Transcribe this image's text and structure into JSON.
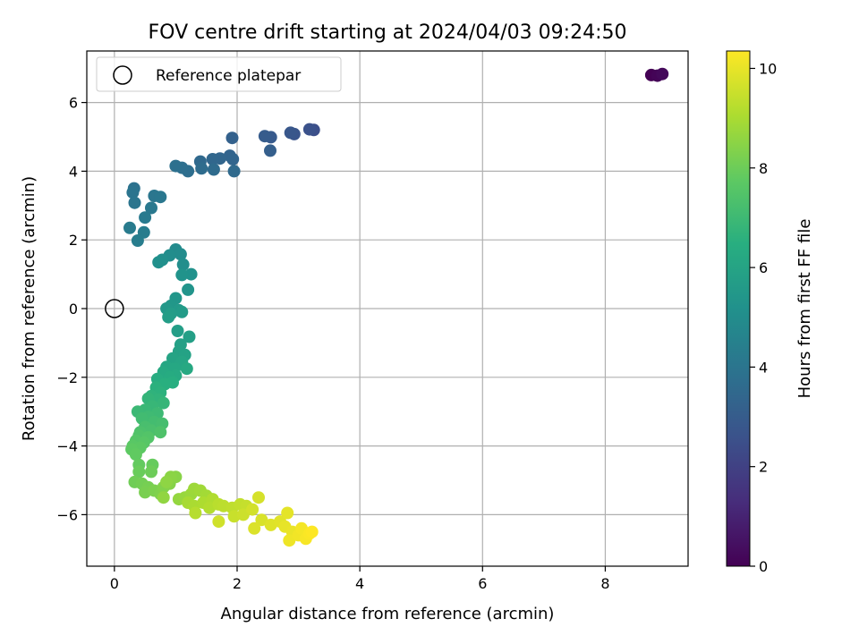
{
  "chart_data": {
    "type": "scatter",
    "title": "FOV centre drift starting at 2024/04/03 09:24:50",
    "xlabel": "Angular distance from reference (arcmin)",
    "ylabel": "Rotation from reference (arcmin)",
    "xlim": [
      -0.45,
      9.35
    ],
    "ylim": [
      -7.5,
      7.5
    ],
    "x_ticks": [
      0,
      2,
      4,
      6,
      8
    ],
    "y_ticks": [
      -6,
      -4,
      -2,
      0,
      2,
      4,
      6
    ],
    "x_tick_labels": [
      "0",
      "2",
      "4",
      "6",
      "8"
    ],
    "y_tick_labels": [
      "−6",
      "−4",
      "−2",
      "0",
      "2",
      "4",
      "6"
    ],
    "grid": true,
    "legend": {
      "placement": "top-left",
      "entries": [
        "Reference platepar"
      ]
    },
    "colormap": "viridis",
    "colorbar": {
      "label": "Hours from first FF file",
      "range": [
        0,
        10.35
      ],
      "ticks": [
        0,
        2,
        4,
        6,
        8,
        10
      ],
      "tick_labels": [
        "0",
        "2",
        "4",
        "6",
        "8",
        "10"
      ]
    },
    "reference_point": {
      "name": "Reference platepar",
      "x": 0,
      "y": 0
    },
    "series": [
      {
        "values": [
          {
            "x": 8.75,
            "y": 6.8,
            "t": 0.0
          },
          {
            "x": 8.85,
            "y": 6.78,
            "t": 0.1
          },
          {
            "x": 8.93,
            "y": 6.83,
            "t": 0.2
          },
          {
            "x": 3.25,
            "y": 5.2,
            "t": 2.5
          },
          {
            "x": 3.18,
            "y": 5.22,
            "t": 2.6
          },
          {
            "x": 2.93,
            "y": 5.08,
            "t": 2.7
          },
          {
            "x": 2.87,
            "y": 5.12,
            "t": 2.8
          },
          {
            "x": 2.55,
            "y": 4.99,
            "t": 2.9
          },
          {
            "x": 2.45,
            "y": 5.02,
            "t": 3.0
          },
          {
            "x": 2.54,
            "y": 4.6,
            "t": 3.1
          },
          {
            "x": 1.92,
            "y": 4.97,
            "t": 3.2
          },
          {
            "x": 1.88,
            "y": 4.45,
            "t": 3.3
          },
          {
            "x": 1.93,
            "y": 4.35,
            "t": 3.35
          },
          {
            "x": 1.72,
            "y": 4.37,
            "t": 3.4
          },
          {
            "x": 1.6,
            "y": 4.35,
            "t": 3.45
          },
          {
            "x": 1.4,
            "y": 4.28,
            "t": 3.5
          },
          {
            "x": 1.95,
            "y": 4.0,
            "t": 3.55
          },
          {
            "x": 1.62,
            "y": 4.05,
            "t": 3.6
          },
          {
            "x": 1.42,
            "y": 4.08,
            "t": 3.65
          },
          {
            "x": 1.2,
            "y": 4.0,
            "t": 3.7
          },
          {
            "x": 1.1,
            "y": 4.1,
            "t": 3.75
          },
          {
            "x": 1.0,
            "y": 4.15,
            "t": 3.8
          },
          {
            "x": 0.32,
            "y": 3.5,
            "t": 3.9
          },
          {
            "x": 0.3,
            "y": 3.38,
            "t": 3.95
          },
          {
            "x": 0.33,
            "y": 3.08,
            "t": 4.0
          },
          {
            "x": 0.65,
            "y": 3.28,
            "t": 4.05
          },
          {
            "x": 0.75,
            "y": 3.25,
            "t": 4.1
          },
          {
            "x": 0.6,
            "y": 2.93,
            "t": 4.15
          },
          {
            "x": 0.5,
            "y": 2.65,
            "t": 4.2
          },
          {
            "x": 0.25,
            "y": 2.35,
            "t": 4.25
          },
          {
            "x": 0.48,
            "y": 2.22,
            "t": 4.3
          },
          {
            "x": 0.38,
            "y": 1.98,
            "t": 4.35
          },
          {
            "x": 1.0,
            "y": 1.72,
            "t": 4.9
          },
          {
            "x": 1.08,
            "y": 1.58,
            "t": 4.95
          },
          {
            "x": 0.9,
            "y": 1.55,
            "t": 5.0
          },
          {
            "x": 1.12,
            "y": 1.28,
            "t": 5.05
          },
          {
            "x": 0.78,
            "y": 1.42,
            "t": 5.1
          },
          {
            "x": 0.72,
            "y": 1.35,
            "t": 5.15
          },
          {
            "x": 1.25,
            "y": 1.0,
            "t": 5.2
          },
          {
            "x": 1.1,
            "y": 0.98,
            "t": 5.25
          },
          {
            "x": 1.2,
            "y": 0.55,
            "t": 5.3
          },
          {
            "x": 1.0,
            "y": 0.3,
            "t": 5.4
          },
          {
            "x": 0.92,
            "y": 0.08,
            "t": 5.45
          },
          {
            "x": 0.85,
            "y": 0.0,
            "t": 5.5
          },
          {
            "x": 1.05,
            "y": -0.05,
            "t": 5.55
          },
          {
            "x": 1.1,
            "y": -0.1,
            "t": 5.6
          },
          {
            "x": 0.92,
            "y": -0.15,
            "t": 5.65
          },
          {
            "x": 0.88,
            "y": -0.25,
            "t": 5.7
          },
          {
            "x": 1.03,
            "y": -0.65,
            "t": 5.75
          },
          {
            "x": 1.22,
            "y": -0.82,
            "t": 5.8
          },
          {
            "x": 1.08,
            "y": -1.05,
            "t": 5.85
          },
          {
            "x": 1.05,
            "y": -1.25,
            "t": 5.9
          },
          {
            "x": 1.15,
            "y": -1.35,
            "t": 5.95
          },
          {
            "x": 0.95,
            "y": -1.45,
            "t": 6.0
          },
          {
            "x": 1.1,
            "y": -1.55,
            "t": 6.05
          },
          {
            "x": 0.85,
            "y": -1.7,
            "t": 6.1
          },
          {
            "x": 0.98,
            "y": -1.75,
            "t": 6.15
          },
          {
            "x": 1.18,
            "y": -1.75,
            "t": 6.2
          },
          {
            "x": 0.8,
            "y": -1.85,
            "t": 6.25
          },
          {
            "x": 1.0,
            "y": -1.95,
            "t": 6.3
          },
          {
            "x": 0.9,
            "y": -2.0,
            "t": 6.35
          },
          {
            "x": 0.7,
            "y": -2.05,
            "t": 6.4
          },
          {
            "x": 0.95,
            "y": -2.15,
            "t": 6.45
          },
          {
            "x": 0.82,
            "y": -2.2,
            "t": 6.5
          },
          {
            "x": 0.68,
            "y": -2.3,
            "t": 6.55
          },
          {
            "x": 0.75,
            "y": -2.45,
            "t": 6.6
          },
          {
            "x": 0.6,
            "y": -2.55,
            "t": 6.65
          },
          {
            "x": 0.72,
            "y": -2.65,
            "t": 6.7
          },
          {
            "x": 0.55,
            "y": -2.62,
            "t": 6.75
          },
          {
            "x": 0.8,
            "y": -2.75,
            "t": 6.8
          },
          {
            "x": 0.62,
            "y": -2.85,
            "t": 6.85
          },
          {
            "x": 0.5,
            "y": -2.95,
            "t": 6.9
          },
          {
            "x": 0.38,
            "y": -3.0,
            "t": 6.95
          },
          {
            "x": 0.7,
            "y": -3.05,
            "t": 7.0
          },
          {
            "x": 0.55,
            "y": -3.15,
            "t": 7.05
          },
          {
            "x": 0.45,
            "y": -3.2,
            "t": 7.1
          },
          {
            "x": 0.65,
            "y": -3.3,
            "t": 7.15
          },
          {
            "x": 0.78,
            "y": -3.35,
            "t": 7.2
          },
          {
            "x": 0.5,
            "y": -3.45,
            "t": 7.25
          },
          {
            "x": 0.6,
            "y": -3.55,
            "t": 7.3
          },
          {
            "x": 0.42,
            "y": -3.6,
            "t": 7.35
          },
          {
            "x": 0.75,
            "y": -3.6,
            "t": 7.4
          },
          {
            "x": 0.4,
            "y": -3.7,
            "t": 7.45
          },
          {
            "x": 0.55,
            "y": -3.75,
            "t": 7.5
          },
          {
            "x": 0.35,
            "y": -3.85,
            "t": 7.55
          },
          {
            "x": 0.48,
            "y": -3.9,
            "t": 7.6
          },
          {
            "x": 0.3,
            "y": -4.0,
            "t": 7.65
          },
          {
            "x": 0.42,
            "y": -4.05,
            "t": 7.7
          },
          {
            "x": 0.28,
            "y": -4.1,
            "t": 7.75
          },
          {
            "x": 0.35,
            "y": -4.25,
            "t": 7.8
          },
          {
            "x": 0.4,
            "y": -4.55,
            "t": 7.85
          },
          {
            "x": 0.62,
            "y": -4.55,
            "t": 7.9
          },
          {
            "x": 0.4,
            "y": -4.75,
            "t": 7.95
          },
          {
            "x": 0.6,
            "y": -4.75,
            "t": 8.0
          },
          {
            "x": 0.33,
            "y": -5.05,
            "t": 8.05
          },
          {
            "x": 0.45,
            "y": -5.1,
            "t": 8.1
          },
          {
            "x": 0.55,
            "y": -5.2,
            "t": 8.15
          },
          {
            "x": 0.5,
            "y": -5.35,
            "t": 8.2
          },
          {
            "x": 0.65,
            "y": -5.3,
            "t": 8.25
          },
          {
            "x": 0.75,
            "y": -5.4,
            "t": 8.3
          },
          {
            "x": 0.8,
            "y": -5.2,
            "t": 8.35
          },
          {
            "x": 0.9,
            "y": -5.1,
            "t": 8.4
          },
          {
            "x": 1.0,
            "y": -4.9,
            "t": 8.45
          },
          {
            "x": 0.92,
            "y": -4.9,
            "t": 8.5
          },
          {
            "x": 0.85,
            "y": -5.05,
            "t": 8.55
          },
          {
            "x": 0.8,
            "y": -5.5,
            "t": 8.6
          },
          {
            "x": 1.05,
            "y": -5.55,
            "t": 8.65
          },
          {
            "x": 1.15,
            "y": -5.5,
            "t": 8.7
          },
          {
            "x": 1.25,
            "y": -5.4,
            "t": 8.75
          },
          {
            "x": 1.3,
            "y": -5.25,
            "t": 8.8
          },
          {
            "x": 1.4,
            "y": -5.3,
            "t": 8.85
          },
          {
            "x": 1.5,
            "y": -5.45,
            "t": 8.9
          },
          {
            "x": 1.2,
            "y": -5.65,
            "t": 8.95
          },
          {
            "x": 1.3,
            "y": -5.75,
            "t": 9.0
          },
          {
            "x": 1.45,
            "y": -5.65,
            "t": 9.05
          },
          {
            "x": 1.6,
            "y": -5.55,
            "t": 9.1
          },
          {
            "x": 1.55,
            "y": -5.8,
            "t": 9.15
          },
          {
            "x": 1.32,
            "y": -5.95,
            "t": 9.2
          },
          {
            "x": 1.7,
            "y": -5.7,
            "t": 9.25
          },
          {
            "x": 1.78,
            "y": -5.75,
            "t": 9.3
          },
          {
            "x": 1.92,
            "y": -5.8,
            "t": 9.35
          },
          {
            "x": 2.05,
            "y": -5.7,
            "t": 9.4
          },
          {
            "x": 2.15,
            "y": -5.75,
            "t": 9.45
          },
          {
            "x": 1.95,
            "y": -6.05,
            "t": 9.5
          },
          {
            "x": 2.1,
            "y": -6.0,
            "t": 9.55
          },
          {
            "x": 1.7,
            "y": -6.2,
            "t": 9.6
          },
          {
            "x": 2.25,
            "y": -5.85,
            "t": 9.65
          },
          {
            "x": 2.35,
            "y": -5.5,
            "t": 9.7
          },
          {
            "x": 2.4,
            "y": -6.15,
            "t": 9.75
          },
          {
            "x": 2.28,
            "y": -6.4,
            "t": 9.8
          },
          {
            "x": 2.55,
            "y": -6.3,
            "t": 9.85
          },
          {
            "x": 2.7,
            "y": -6.2,
            "t": 9.9
          },
          {
            "x": 2.82,
            "y": -5.95,
            "t": 9.95
          },
          {
            "x": 2.78,
            "y": -6.35,
            "t": 10.0
          },
          {
            "x": 2.9,
            "y": -6.5,
            "t": 10.05
          },
          {
            "x": 2.85,
            "y": -6.75,
            "t": 10.1
          },
          {
            "x": 3.0,
            "y": -6.6,
            "t": 10.15
          },
          {
            "x": 3.05,
            "y": -6.4,
            "t": 10.2
          },
          {
            "x": 3.12,
            "y": -6.7,
            "t": 10.25
          },
          {
            "x": 3.18,
            "y": -6.55,
            "t": 10.3
          },
          {
            "x": 3.22,
            "y": -6.5,
            "t": 10.35
          }
        ]
      }
    ]
  }
}
